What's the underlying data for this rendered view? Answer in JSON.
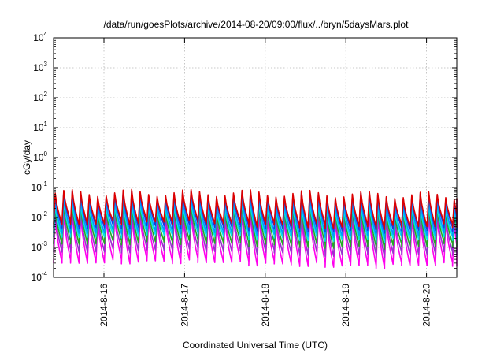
{
  "chart_data": {
    "type": "line",
    "title": "/data/run/goesPlots/archive/2014-08-20/09:00/flux/../bryn/5daysMars.plot",
    "xlabel": "Coordinated Universal Time (UTC)",
    "ylabel": "cGy/day",
    "y_scale": "log",
    "ylim": [
      0.0001,
      10000
    ],
    "y_ticks": [
      {
        "base": "10",
        "exp": "-4",
        "value": 0.0001
      },
      {
        "base": "10",
        "exp": "-3",
        "value": 0.001
      },
      {
        "base": "10",
        "exp": "-2",
        "value": 0.01
      },
      {
        "base": "10",
        "exp": "-1",
        "value": 0.1
      },
      {
        "base": "10",
        "exp": "0",
        "value": 1
      },
      {
        "base": "10",
        "exp": "1",
        "value": 10
      },
      {
        "base": "10",
        "exp": "2",
        "value": 100
      },
      {
        "base": "10",
        "exp": "3",
        "value": 1000
      },
      {
        "base": "10",
        "exp": "4",
        "value": 10000
      }
    ],
    "xlim": [
      "2014-08-15 09:00",
      "2014-08-20 09:00"
    ],
    "x_ticks": [
      {
        "label": "2014-8-16",
        "value": "2014-08-16 00:00"
      },
      {
        "label": "2014-8-17",
        "value": "2014-08-17 00:00"
      },
      {
        "label": "2014-8-18",
        "value": "2014-08-18 00:00"
      },
      {
        "label": "2014-8-19",
        "value": "2014-08-19 00:00"
      },
      {
        "label": "2014-8-20",
        "value": "2014-08-20 00:00"
      }
    ],
    "grid": true,
    "cycles_per_day": 9.5,
    "series": [
      {
        "color": "#dd0000",
        "peak": 0.055,
        "trough": 0.006
      },
      {
        "color": "#1a3adf",
        "peak": 0.05,
        "trough": 0.0045
      },
      {
        "color": "#0099ff",
        "peak": 0.032,
        "trough": 0.003
      },
      {
        "color": "#00e5e5",
        "peak": 0.022,
        "trough": 0.0022
      },
      {
        "color": "#22aa22",
        "peak": 0.018,
        "trough": 0.0013
      },
      {
        "color": "#9933cc",
        "peak": 0.012,
        "trough": 0.0007
      },
      {
        "color": "#ff00ee",
        "peak": 0.009,
        "trough": 0.0003
      }
    ]
  }
}
